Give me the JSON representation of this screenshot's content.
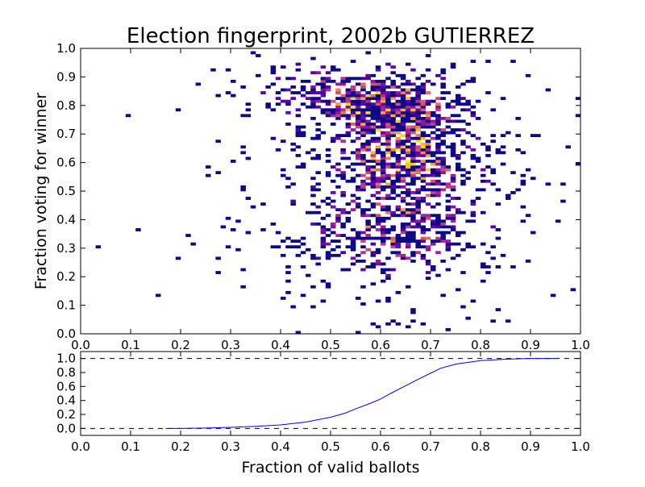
{
  "chart_data": [
    {
      "type": "heatmap",
      "title": "Election fingerprint, 2002b GUTIERREZ",
      "xlabel": "",
      "ylabel": "Fraction voting for winner",
      "xlim": [
        0.0,
        1.0
      ],
      "ylim": [
        0.0,
        1.0
      ],
      "bins": 100,
      "colormap": "plasma",
      "colormap_stops": [
        "#0d0887",
        "#5c01a6",
        "#9c179e",
        "#cc4778",
        "#ed7953",
        "#fdb42f",
        "#f0f921"
      ],
      "xticks": [
        "0.0",
        "0.1",
        "0.2",
        "0.3",
        "0.4",
        "0.5",
        "0.6",
        "0.7",
        "0.8",
        "0.9",
        "1.0"
      ],
      "yticks": [
        "0.0",
        "0.1",
        "0.2",
        "0.3",
        "0.4",
        "0.5",
        "0.6",
        "0.7",
        "0.8",
        "0.9",
        "1.0"
      ],
      "density_clusters": [
        {
          "x": 0.62,
          "y": 0.8,
          "sx": 0.07,
          "sy": 0.055,
          "weight": 1.0
        },
        {
          "x": 0.65,
          "y": 0.62,
          "sx": 0.08,
          "sy": 0.1,
          "weight": 0.75
        },
        {
          "x": 0.63,
          "y": 0.36,
          "sx": 0.085,
          "sy": 0.08,
          "weight": 0.55
        },
        {
          "x": 0.5,
          "y": 0.85,
          "sx": 0.09,
          "sy": 0.06,
          "weight": 0.4
        },
        {
          "x": 0.62,
          "y": 0.52,
          "sx": 0.16,
          "sy": 0.26,
          "weight": 0.22
        }
      ],
      "grid": false
    },
    {
      "type": "line",
      "xlabel": "Fraction of valid ballots",
      "ylabel": "",
      "xlim": [
        0.0,
        1.0
      ],
      "ylim": [
        -0.1,
        1.1
      ],
      "xticks": [
        "0.0",
        "0.1",
        "0.2",
        "0.3",
        "0.4",
        "0.5",
        "0.6",
        "0.7",
        "0.8",
        "0.9",
        "1.0"
      ],
      "yticks": [
        "0.0",
        "0.2",
        "0.4",
        "0.6",
        "0.8",
        "1.0"
      ],
      "reference_lines": [
        0.0,
        1.0
      ],
      "series": [
        {
          "color": "#0000ff",
          "x": [
            0.17,
            0.2,
            0.25,
            0.3,
            0.35,
            0.4,
            0.45,
            0.5,
            0.53,
            0.55,
            0.58,
            0.6,
            0.62,
            0.65,
            0.68,
            0.7,
            0.72,
            0.75,
            0.78,
            0.8,
            0.85,
            0.9,
            0.95
          ],
          "y": [
            0.0,
            0.0,
            0.005,
            0.015,
            0.03,
            0.05,
            0.09,
            0.16,
            0.22,
            0.28,
            0.36,
            0.42,
            0.5,
            0.61,
            0.72,
            0.79,
            0.86,
            0.92,
            0.95,
            0.97,
            0.99,
            1.0,
            1.0
          ]
        }
      ],
      "grid": false
    }
  ]
}
